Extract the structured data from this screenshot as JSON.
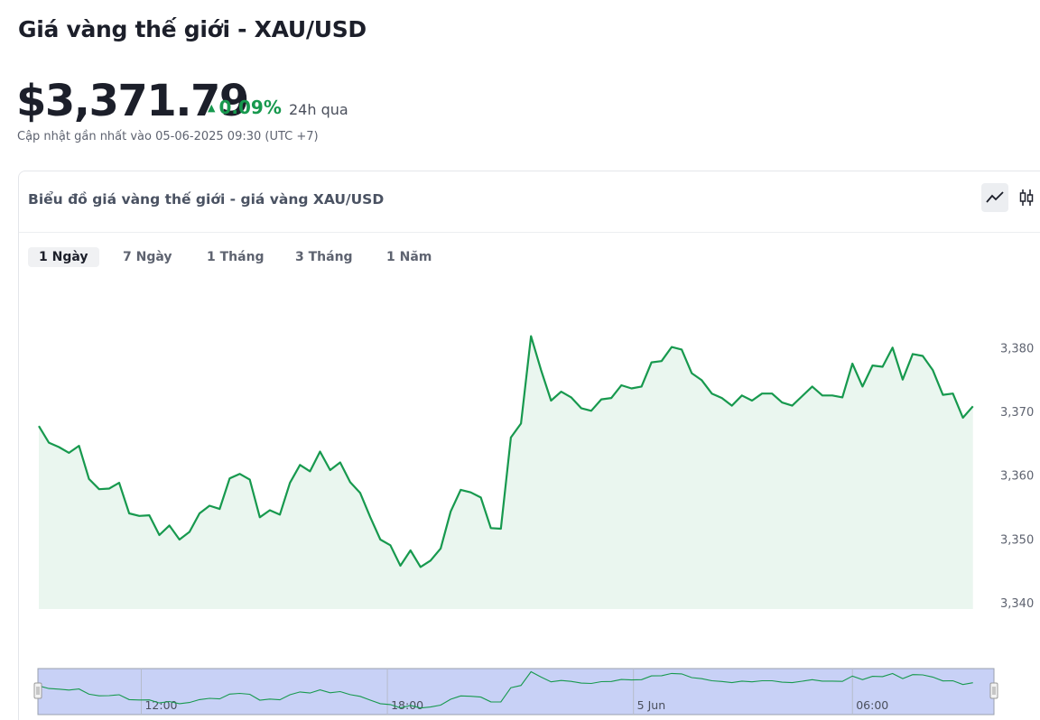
{
  "header": {
    "title": "Giá vàng thế giới - XAU/USD",
    "price": "$3,371.79",
    "change": "0.09%",
    "change_period": "24h qua",
    "updated": "Cập nhật gần nhất vào 05-06-2025 09:30 (UTC +7)"
  },
  "card": {
    "title": "Biểu đồ giá vàng thế giới - giá vàng XAU/USD",
    "tabs": [
      "1 Ngày",
      "7 Ngày",
      "1 Tháng",
      "3 Tháng",
      "1 Năm"
    ],
    "active_tab": 0
  },
  "chart_data": {
    "type": "area",
    "series": [
      {
        "name": "XAU/USD",
        "color": "#17994e",
        "values": [
          3367.7,
          3365.1,
          3364.4,
          3363.5,
          3364.6,
          3359.4,
          3357.8,
          3357.9,
          3358.8,
          3354.0,
          3353.6,
          3353.7,
          3350.6,
          3352.1,
          3349.9,
          3351.1,
          3354.0,
          3355.2,
          3354.7,
          3359.5,
          3360.2,
          3359.3,
          3353.4,
          3354.5,
          3353.8,
          3358.8,
          3361.6,
          3360.6,
          3363.7,
          3360.8,
          3362.0,
          3358.9,
          3357.2,
          3353.4,
          3349.9,
          3349.0,
          3345.8,
          3348.2,
          3345.6,
          3346.6,
          3348.5,
          3354.3,
          3357.7,
          3357.3,
          3356.5,
          3351.7,
          3351.6,
          3365.9,
          3368.1,
          3381.8,
          3376.5,
          3371.7,
          3373.1,
          3372.2,
          3370.5,
          3370.1,
          3371.9,
          3372.1,
          3374.1,
          3373.6,
          3373.9,
          3377.7,
          3377.9,
          3380.1,
          3379.7,
          3376.0,
          3374.9,
          3372.8,
          3372.1,
          3370.9,
          3372.5,
          3371.7,
          3372.8,
          3372.8,
          3371.4,
          3370.9,
          3372.4,
          3373.9,
          3372.5,
          3372.5,
          3372.2,
          3377.5,
          3373.9,
          3377.2,
          3377.0,
          3380.0,
          3375.0,
          3379.0,
          3378.7,
          3376.5,
          3372.6,
          3372.8,
          3369.0,
          3370.8
        ]
      }
    ],
    "ylim": [
      3339,
      3385
    ],
    "yticks": [
      {
        "value": 3340,
        "label": "3,340"
      },
      {
        "value": 3350,
        "label": "3,350"
      },
      {
        "value": 3360,
        "label": "3,360"
      },
      {
        "value": 3370,
        "label": "3,370"
      },
      {
        "value": 3380,
        "label": "3,380"
      }
    ],
    "xlim": [
      0,
      95
    ],
    "xticks": [
      {
        "value": 10.2,
        "label": "12:00"
      },
      {
        "value": 34.7,
        "label": "18:00"
      },
      {
        "value": 59.2,
        "label": "5 Jun"
      },
      {
        "value": 81,
        "label": "06:00"
      }
    ],
    "grid": false
  }
}
